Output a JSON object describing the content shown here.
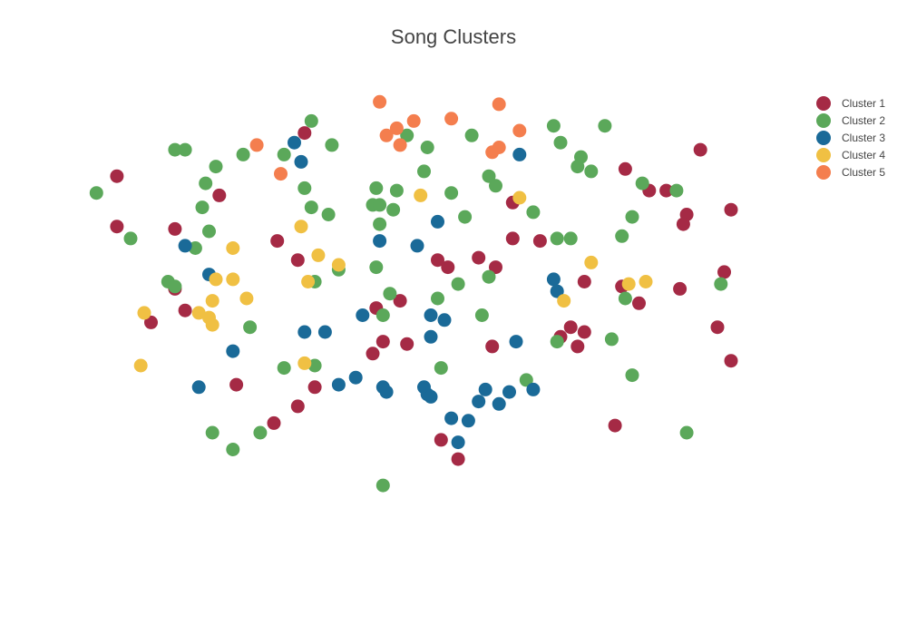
{
  "chart_data": {
    "type": "scatter",
    "title": "Song Clusters",
    "xlabel": "",
    "ylabel": "",
    "xlim": [
      -1.05,
      1.05
    ],
    "ylim": [
      -1.0,
      1.1
    ],
    "grid": false,
    "legend_position": "top-right",
    "series": [
      {
        "name": "Cluster 1",
        "color": "#A52A45",
        "points": [
          [
            -0.37,
            0.81
          ],
          [
            -0.92,
            0.63
          ],
          [
            -0.62,
            0.55
          ],
          [
            -0.92,
            0.42
          ],
          [
            -0.75,
            0.41
          ],
          [
            -0.75,
            0.16
          ],
          [
            -0.72,
            0.07
          ],
          [
            -0.82,
            0.02
          ],
          [
            -0.45,
            0.36
          ],
          [
            -0.39,
            0.28
          ],
          [
            -0.16,
            0.08
          ],
          [
            -0.09,
            0.11
          ],
          [
            0.02,
            0.28
          ],
          [
            0.05,
            0.25
          ],
          [
            0.14,
            0.29
          ],
          [
            0.19,
            0.25
          ],
          [
            0.24,
            0.52
          ],
          [
            0.24,
            0.37
          ],
          [
            0.32,
            0.36
          ],
          [
            -0.14,
            -0.06
          ],
          [
            -0.17,
            -0.11
          ],
          [
            -0.07,
            -0.07
          ],
          [
            0.18,
            -0.08
          ],
          [
            -0.57,
            -0.24
          ],
          [
            -0.34,
            -0.25
          ],
          [
            -0.39,
            -0.33
          ],
          [
            -0.46,
            -0.4
          ],
          [
            0.03,
            -0.47
          ],
          [
            0.08,
            -0.55
          ],
          [
            0.45,
            0.19
          ],
          [
            0.38,
            -0.04
          ],
          [
            0.41,
            0.0
          ],
          [
            0.45,
            -0.02
          ],
          [
            0.43,
            -0.08
          ],
          [
            0.56,
            0.17
          ],
          [
            0.61,
            0.1
          ],
          [
            0.54,
            -0.41
          ],
          [
            0.57,
            0.66
          ],
          [
            0.64,
            0.57
          ],
          [
            0.69,
            0.57
          ],
          [
            0.75,
            0.47
          ],
          [
            0.74,
            0.43
          ],
          [
            0.79,
            0.74
          ],
          [
            0.88,
            0.49
          ],
          [
            0.86,
            0.23
          ],
          [
            0.84,
            0.0
          ],
          [
            0.88,
            -0.14
          ],
          [
            0.73,
            0.16
          ]
        ]
      },
      {
        "name": "Cluster 2",
        "color": "#5BA85A",
        "points": [
          [
            -0.98,
            0.56
          ],
          [
            -0.88,
            0.37
          ],
          [
            -0.77,
            0.19
          ],
          [
            -0.75,
            0.17
          ],
          [
            -0.69,
            0.33
          ],
          [
            -0.65,
            0.4
          ],
          [
            -0.67,
            0.5
          ],
          [
            -0.66,
            0.6
          ],
          [
            -0.75,
            0.74
          ],
          [
            -0.72,
            0.74
          ],
          [
            -0.63,
            0.67
          ],
          [
            -0.55,
            0.72
          ],
          [
            -0.43,
            0.72
          ],
          [
            -0.35,
            0.86
          ],
          [
            -0.29,
            0.76
          ],
          [
            -0.37,
            0.58
          ],
          [
            -0.35,
            0.5
          ],
          [
            -0.3,
            0.47
          ],
          [
            -0.27,
            0.24
          ],
          [
            -0.34,
            0.19
          ],
          [
            -0.16,
            0.58
          ],
          [
            -0.17,
            0.51
          ],
          [
            -0.15,
            0.51
          ],
          [
            -0.11,
            0.49
          ],
          [
            -0.1,
            0.57
          ],
          [
            -0.15,
            0.43
          ],
          [
            -0.16,
            0.25
          ],
          [
            -0.07,
            0.8
          ],
          [
            -0.01,
            0.75
          ],
          [
            -0.02,
            0.65
          ],
          [
            0.06,
            0.56
          ],
          [
            0.1,
            0.46
          ],
          [
            0.12,
            0.8
          ],
          [
            0.17,
            0.63
          ],
          [
            0.19,
            0.59
          ],
          [
            0.08,
            0.18
          ],
          [
            0.17,
            0.21
          ],
          [
            0.3,
            0.48
          ],
          [
            0.36,
            0.84
          ],
          [
            0.38,
            0.77
          ],
          [
            0.44,
            0.71
          ],
          [
            0.43,
            0.67
          ],
          [
            0.47,
            0.65
          ],
          [
            0.51,
            0.84
          ],
          [
            0.59,
            0.46
          ],
          [
            0.62,
            0.6
          ],
          [
            0.72,
            0.57
          ],
          [
            0.41,
            0.37
          ],
          [
            0.37,
            0.37
          ],
          [
            0.56,
            0.38
          ],
          [
            0.85,
            0.18
          ],
          [
            0.57,
            0.12
          ],
          [
            -0.53,
            0.0
          ],
          [
            -0.14,
            0.05
          ],
          [
            -0.12,
            0.14
          ],
          [
            0.02,
            0.12
          ],
          [
            0.15,
            0.05
          ],
          [
            -0.43,
            -0.17
          ],
          [
            -0.34,
            -0.16
          ],
          [
            0.03,
            -0.17
          ],
          [
            0.28,
            -0.22
          ],
          [
            0.37,
            -0.06
          ],
          [
            0.53,
            -0.05
          ],
          [
            0.59,
            -0.2
          ],
          [
            0.75,
            -0.44
          ],
          [
            -0.64,
            -0.44
          ],
          [
            -0.58,
            -0.51
          ],
          [
            -0.14,
            -0.66
          ],
          [
            -0.5,
            -0.44
          ]
        ]
      },
      {
        "name": "Cluster 3",
        "color": "#1A6A98",
        "points": [
          [
            -0.4,
            0.77
          ],
          [
            -0.38,
            0.69
          ],
          [
            -0.72,
            0.34
          ],
          [
            -0.65,
            0.22
          ],
          [
            -0.15,
            0.36
          ],
          [
            0.02,
            0.44
          ],
          [
            -0.04,
            0.34
          ],
          [
            -0.2,
            0.05
          ],
          [
            -0.37,
            -0.02
          ],
          [
            -0.31,
            -0.02
          ],
          [
            0.0,
            0.05
          ],
          [
            0.04,
            0.03
          ],
          [
            0.0,
            -0.04
          ],
          [
            0.26,
            0.72
          ],
          [
            0.36,
            0.2
          ],
          [
            0.37,
            0.15
          ],
          [
            0.25,
            -0.06
          ],
          [
            -0.58,
            -0.1
          ],
          [
            -0.68,
            -0.25
          ],
          [
            -0.27,
            -0.24
          ],
          [
            -0.22,
            -0.21
          ],
          [
            -0.14,
            -0.25
          ],
          [
            -0.13,
            -0.27
          ],
          [
            -0.02,
            -0.25
          ],
          [
            -0.01,
            -0.28
          ],
          [
            0.0,
            -0.29
          ],
          [
            0.06,
            -0.38
          ],
          [
            0.14,
            -0.31
          ],
          [
            0.16,
            -0.26
          ],
          [
            0.2,
            -0.32
          ],
          [
            0.23,
            -0.27
          ],
          [
            0.3,
            -0.26
          ],
          [
            0.11,
            -0.39
          ],
          [
            0.08,
            -0.48
          ]
        ]
      },
      {
        "name": "Cluster 4",
        "color": "#F0C043",
        "points": [
          [
            -0.58,
            0.33
          ],
          [
            -0.38,
            0.42
          ],
          [
            -0.33,
            0.3
          ],
          [
            -0.27,
            0.26
          ],
          [
            -0.36,
            0.19
          ],
          [
            -0.63,
            0.2
          ],
          [
            -0.58,
            0.2
          ],
          [
            -0.64,
            0.11
          ],
          [
            -0.54,
            0.12
          ],
          [
            -0.65,
            0.04
          ],
          [
            -0.68,
            0.06
          ],
          [
            -0.64,
            0.01
          ],
          [
            -0.84,
            0.06
          ],
          [
            -0.85,
            -0.16
          ],
          [
            -0.37,
            -0.15
          ],
          [
            -0.03,
            0.55
          ],
          [
            0.26,
            0.54
          ],
          [
            0.47,
            0.27
          ],
          [
            0.39,
            0.11
          ],
          [
            0.58,
            0.18
          ],
          [
            0.63,
            0.19
          ]
        ]
      },
      {
        "name": "Cluster 5",
        "color": "#F47E4E",
        "points": [
          [
            -0.51,
            0.76
          ],
          [
            -0.44,
            0.64
          ],
          [
            -0.15,
            0.94
          ],
          [
            -0.13,
            0.8
          ],
          [
            -0.1,
            0.83
          ],
          [
            -0.09,
            0.76
          ],
          [
            -0.05,
            0.86
          ],
          [
            0.06,
            0.87
          ],
          [
            0.2,
            0.93
          ],
          [
            0.26,
            0.82
          ],
          [
            0.2,
            0.75
          ],
          [
            0.18,
            0.73
          ]
        ]
      }
    ]
  }
}
